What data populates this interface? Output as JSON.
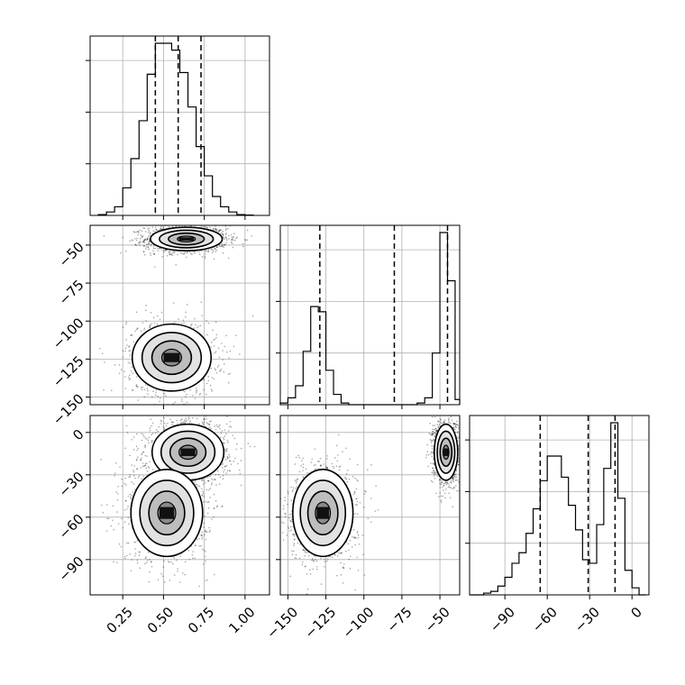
{
  "chart_data": {
    "type": "corner",
    "grid": true,
    "colors": {
      "hist": "#000000",
      "quantile": "#000000",
      "scatter": "#000000",
      "grid": "#b0b0b0"
    },
    "params": [
      {
        "range": [
          0.05,
          1.15
        ],
        "ticks": [
          0.25,
          0.5,
          0.75,
          1.0
        ],
        "tick_labels": [
          "0.25",
          "0.50",
          "0.75",
          "1.00"
        ]
      },
      {
        "range": [
          -155,
          -37
        ],
        "ticks": [
          -150,
          -125,
          -100,
          -75,
          -50
        ],
        "tick_labels": [
          "−150",
          "−125",
          "−100",
          "−75",
          "−50"
        ]
      },
      {
        "range": [
          -115,
          12
        ],
        "ticks": [
          -90,
          -60,
          -30,
          0
        ],
        "tick_labels": [
          "−90",
          "−60",
          "−30",
          "0"
        ]
      }
    ],
    "histograms": [
      {
        "param": 0,
        "bins": [
          0.1,
          0.15,
          0.2,
          0.25,
          0.3,
          0.35,
          0.4,
          0.45,
          0.5,
          0.55,
          0.6,
          0.65,
          0.7,
          0.75,
          0.8,
          0.85,
          0.9,
          0.95,
          1.0,
          1.05
        ],
        "counts": [
          0.005,
          0.02,
          0.05,
          0.16,
          0.33,
          0.55,
          0.82,
          1.0,
          1.0,
          0.96,
          0.83,
          0.63,
          0.4,
          0.23,
          0.11,
          0.05,
          0.02,
          0.005,
          0.002
        ],
        "quantiles": [
          0.45,
          0.59,
          0.73
        ]
      },
      {
        "param": 1,
        "bins": [
          -155,
          -150,
          -145,
          -140,
          -135,
          -130,
          -125,
          -120,
          -115,
          -110,
          -105,
          -100,
          -95,
          -90,
          -85,
          -80,
          -75,
          -70,
          -65,
          -60,
          -55,
          -50,
          -45,
          -40,
          -37
        ],
        "counts": [
          0.01,
          0.04,
          0.11,
          0.31,
          0.57,
          0.54,
          0.2,
          0.06,
          0.01,
          0.0,
          0.0,
          0.0,
          0.0,
          0.0,
          0.0,
          0.0,
          0.0,
          0.0,
          0.01,
          0.04,
          0.3,
          1.0,
          0.72,
          0.03
        ],
        "quantiles": [
          -129,
          -80,
          -45
        ]
      },
      {
        "param": 2,
        "bins": [
          -115,
          -110,
          -105,
          -100,
          -95,
          -90,
          -85,
          -80,
          -75,
          -70,
          -65,
          -60,
          -55,
          -50,
          -45,
          -40,
          -35,
          -30,
          -25,
          -20,
          -15,
          -10,
          -5,
          0,
          5,
          10
        ],
        "counts": [
          0.0,
          0.0,
          0.01,
          0.02,
          0.05,
          0.1,
          0.18,
          0.24,
          0.35,
          0.49,
          0.65,
          0.79,
          0.79,
          0.67,
          0.51,
          0.37,
          0.2,
          0.18,
          0.4,
          0.72,
          0.98,
          0.55,
          0.14,
          0.04,
          0.0
        ],
        "quantiles": [
          -65,
          -31,
          -12
        ]
      }
    ],
    "density_panels": [
      {
        "x_param": 0,
        "y_param": 1,
        "modes": [
          {
            "x": 0.64,
            "y": -46,
            "sx": 0.1,
            "sy": 3.5,
            "weight": 0.62
          },
          {
            "x": 0.55,
            "y": -124,
            "sx": 0.11,
            "sy": 10,
            "weight": 0.38
          }
        ]
      },
      {
        "x_param": 0,
        "y_param": 2,
        "modes": [
          {
            "x": 0.65,
            "y": -14,
            "sx": 0.1,
            "sy": 9,
            "weight": 0.55
          },
          {
            "x": 0.52,
            "y": -57,
            "sx": 0.1,
            "sy": 14,
            "weight": 0.45
          }
        ]
      },
      {
        "x_param": 1,
        "y_param": 2,
        "modes": [
          {
            "x": -46,
            "y": -14,
            "sx": 3.5,
            "sy": 9,
            "weight": 0.55
          },
          {
            "x": -127,
            "y": -57,
            "sx": 9,
            "sy": 14,
            "weight": 0.45
          }
        ]
      }
    ]
  }
}
